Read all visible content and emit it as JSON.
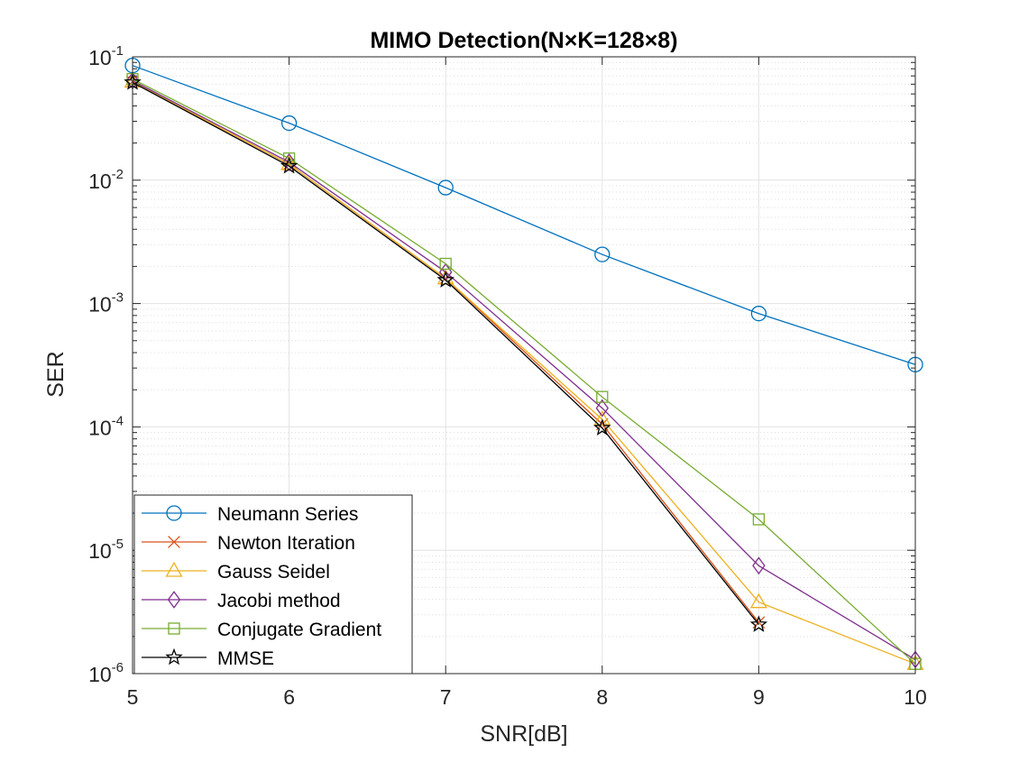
{
  "chart_data": {
    "type": "line",
    "title": "MIMO Detection(N×K=128×8)",
    "xlabel": "SNR[dB]",
    "ylabel": "SER",
    "x": [
      5,
      6,
      7,
      8,
      9,
      10
    ],
    "xlim": [
      5,
      10
    ],
    "ylim": [
      1e-06,
      0.1
    ],
    "yscale": "log",
    "grid": true,
    "minor_grid": true,
    "legend_position": "bottom-left",
    "xtick_labels": [
      "5",
      "6",
      "7",
      "8",
      "9",
      "10"
    ],
    "ytick_labels": [
      {
        "base": "10",
        "exp": "-6"
      },
      {
        "base": "10",
        "exp": "-5"
      },
      {
        "base": "10",
        "exp": "-4"
      },
      {
        "base": "10",
        "exp": "-3"
      },
      {
        "base": "10",
        "exp": "-2"
      },
      {
        "base": "10",
        "exp": "-1"
      }
    ],
    "series": [
      {
        "name": "Neumann Series",
        "color": "#0072BD",
        "marker": "circle",
        "values": [
          0.085,
          0.029,
          0.0087,
          0.0025,
          0.00083,
          0.00032
        ]
      },
      {
        "name": "Newton Iteration",
        "color": "#D95319",
        "marker": "x",
        "values": [
          0.063,
          0.0135,
          0.0016,
          0.000105,
          2.6e-06,
          null
        ]
      },
      {
        "name": "Gauss Seidel",
        "color": "#EDB120",
        "marker": "triangle",
        "values": [
          0.063,
          0.0135,
          0.0016,
          0.000115,
          3.8e-06,
          1.2e-06
        ]
      },
      {
        "name": "Jacobi method",
        "color": "#7E2F8E",
        "marker": "diamond",
        "values": [
          0.064,
          0.014,
          0.0018,
          0.000142,
          7.5e-06,
          1.3e-06
        ]
      },
      {
        "name": "Conjugate Gradient",
        "color": "#77AC30",
        "marker": "square",
        "values": [
          0.066,
          0.015,
          0.0021,
          0.000175,
          1.78e-05,
          1.2e-06
        ]
      },
      {
        "name": "MMSE",
        "color": "#000000",
        "marker": "star",
        "values": [
          0.062,
          0.013,
          0.00155,
          9.8e-05,
          2.5e-06,
          null
        ]
      }
    ]
  }
}
